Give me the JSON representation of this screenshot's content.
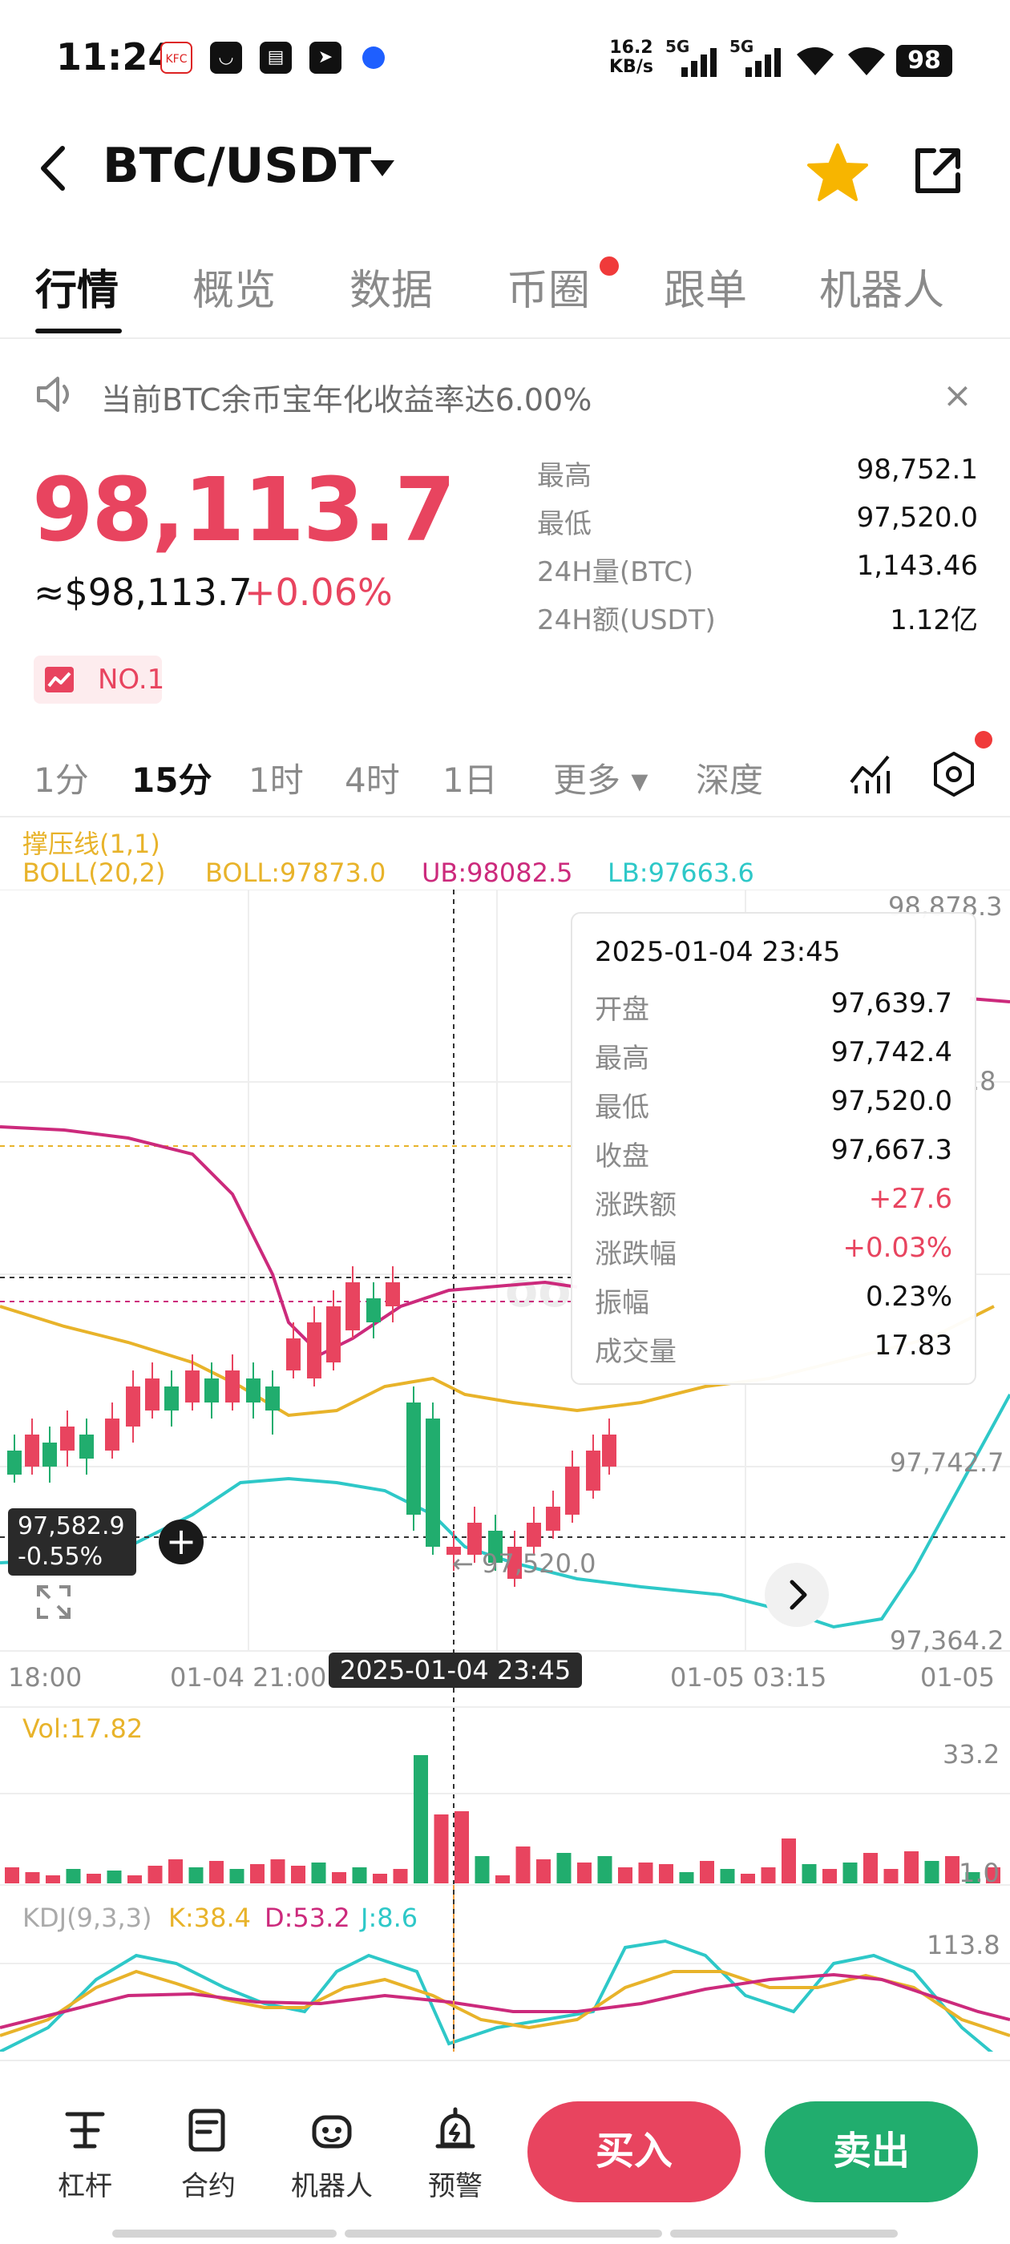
{
  "status": {
    "time": "11:24",
    "net_speed_line1": "16.2",
    "net_speed_line2": "KB/s",
    "signal1": "5G",
    "signal2": "5G",
    "battery": "98"
  },
  "header": {
    "pair": "BTC/USDT"
  },
  "tabs": [
    {
      "label": "行情"
    },
    {
      "label": "概览"
    },
    {
      "label": "数据"
    },
    {
      "label": "币圈"
    },
    {
      "label": "跟单"
    },
    {
      "label": "机器人"
    }
  ],
  "notice": {
    "text": "当前BTC余币宝年化收益率达6.00%",
    "close": "×"
  },
  "price": {
    "last": "98,113.7",
    "usd": "≈$98,113.7",
    "change_pct": "+0.06%",
    "rank": "NO.1"
  },
  "stats": [
    {
      "label": "最高",
      "value": "98,752.1"
    },
    {
      "label": "最低",
      "value": "97,520.0"
    },
    {
      "label": "24H量(BTC)",
      "value": "1,143.46"
    },
    {
      "label": "24H额(USDT)",
      "value": "1.12亿"
    }
  ],
  "intervals": [
    {
      "label": "1分"
    },
    {
      "label": "15分"
    },
    {
      "label": "1时"
    },
    {
      "label": "4时"
    },
    {
      "label": "1日"
    },
    {
      "label": "更多 ▾"
    },
    {
      "label": "深度"
    }
  ],
  "indicators": {
    "sr_line": "撑压线(1,1)",
    "boll_params": "BOLL(20,2)",
    "boll": "BOLL:97873.0",
    "ub": "UB:98082.5",
    "lb": "LB:97663.6",
    "vol": "Vol:17.82",
    "kdj_params": "KDJ(9,3,3)",
    "k": "K:38.4",
    "d": "D:53.2",
    "j": "J:8.6"
  },
  "colors": {
    "up": "#e8445f",
    "down": "#21ad6e",
    "boll_mid": "#e8b32a",
    "ub": "#cc2a7c",
    "lb": "#2ec8c8"
  },
  "chart": {
    "price_labels": [
      "98,878.3",
      ".8",
      "97,742.7",
      "97,364.2"
    ],
    "cross_price_line1": "97,582.9",
    "cross_price_line2": "-0.55%",
    "low_marker": "← 97,520.0",
    "time_labels": [
      "18:00",
      "01-04 21:00",
      "01-05 03:15",
      "01-05"
    ],
    "cross_time": "2025-01-04 23:45",
    "vol_max": "33.2",
    "vol_min": "1.0",
    "kdj_max": "113.8",
    "watermark": "oodte."
  },
  "tooltip": {
    "time": "2025-01-04 23:45",
    "rows": [
      {
        "label": "开盘",
        "value": "97,639.7",
        "tone": "normal"
      },
      {
        "label": "最高",
        "value": "97,742.4",
        "tone": "normal"
      },
      {
        "label": "最低",
        "value": "97,520.0",
        "tone": "normal"
      },
      {
        "label": "收盘",
        "value": "97,667.3",
        "tone": "normal"
      },
      {
        "label": "涨跌额",
        "value": "+27.6",
        "tone": "up"
      },
      {
        "label": "涨跌幅",
        "value": "+0.03%",
        "tone": "up"
      },
      {
        "label": "振幅",
        "value": "0.23%",
        "tone": "normal"
      },
      {
        "label": "成交量",
        "value": "17.83",
        "tone": "normal"
      }
    ]
  },
  "bottom": {
    "items": [
      {
        "label": "杠杆"
      },
      {
        "label": "合约"
      },
      {
        "label": "机器人"
      },
      {
        "label": "预警"
      }
    ],
    "buy": "买入",
    "sell": "卖出"
  }
}
